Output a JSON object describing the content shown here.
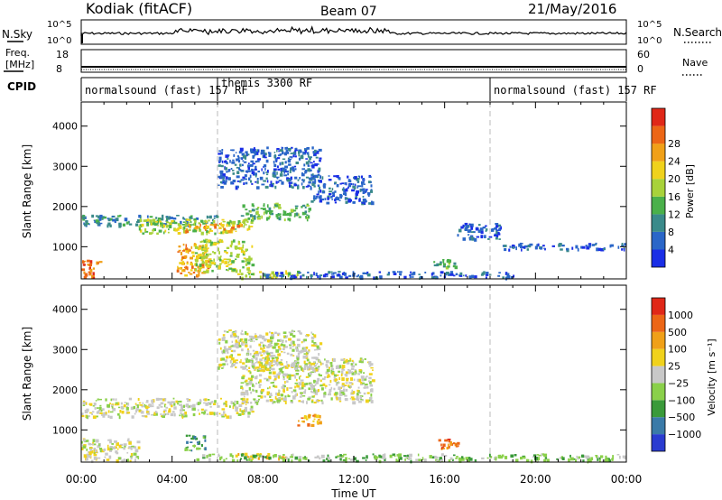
{
  "header": {
    "station": "Kodiak (fitACF)",
    "beam": "Beam 07",
    "date": "21/May/2016"
  },
  "top_panels": {
    "nsky": {
      "label": "N.Sky",
      "ticks": [
        "10^5",
        "10^0"
      ]
    },
    "nsearch": {
      "label": "N.Search",
      "ticks": [
        "10^5",
        "10^0"
      ]
    },
    "freq": {
      "label_line1": "Freq.",
      "label_line2": "[MHz]",
      "ticks": [
        "18",
        "8"
      ]
    },
    "nave": {
      "label": "Nave",
      "ticks": [
        "60",
        "0"
      ]
    },
    "cpid": {
      "label": "CPID",
      "segments": [
        {
          "start_hour": 0,
          "end_hour": 6,
          "text": "normalsound (fast) 157 RF"
        },
        {
          "start_hour": 6,
          "end_hour": 18,
          "text": "themis 3300 RF"
        },
        {
          "start_hour": 18,
          "end_hour": 24,
          "text": "normalsound (fast) 157 RF"
        }
      ]
    }
  },
  "chart_data": [
    {
      "type": "heatmap",
      "name": "power",
      "ylabel": "Slant Range [km]",
      "xlabel": "",
      "xlim": [
        0,
        24
      ],
      "ylim": [
        200,
        4600
      ],
      "x_ticks": [
        "00:00",
        "04:00",
        "08:00",
        "12:00",
        "16:00",
        "20:00",
        "00:00"
      ],
      "y_ticks": [
        1000,
        2000,
        3000,
        4000
      ],
      "colorbar": {
        "label": "Power [dB]",
        "ticks": [
          "4",
          "8",
          "12",
          "16",
          "20",
          "24",
          "28"
        ],
        "colors": [
          "#1a2ee6",
          "#2a66c8",
          "#3a8a8a",
          "#4ab04a",
          "#a8d23a",
          "#f0d21c",
          "#f0a018",
          "#ec6616",
          "#e02818"
        ]
      },
      "echo_regions": [
        {
          "start_hour": 0.0,
          "end_hour": 6.0,
          "range_start": 1550,
          "range_end": 1800,
          "level": 2
        },
        {
          "start_hour": 2.5,
          "end_hour": 7.5,
          "range_start": 1350,
          "range_end": 1700,
          "level": 4
        },
        {
          "start_hour": 4.5,
          "end_hour": 7.0,
          "range_start": 1400,
          "range_end": 1600,
          "level": 6
        },
        {
          "start_hour": 7.0,
          "end_hour": 10.0,
          "range_start": 1700,
          "range_end": 2100,
          "level": 3
        },
        {
          "start_hour": 10.0,
          "end_hour": 12.8,
          "range_start": 2100,
          "range_end": 2800,
          "level": 1
        },
        {
          "start_hour": 6.0,
          "end_hour": 10.5,
          "range_start": 2500,
          "range_end": 3500,
          "level": 1
        },
        {
          "start_hour": 0.0,
          "end_hour": 0.8,
          "range_start": 250,
          "range_end": 700,
          "level": 7
        },
        {
          "start_hour": 4.2,
          "end_hour": 5.6,
          "range_start": 300,
          "range_end": 1100,
          "level": 6
        },
        {
          "start_hour": 5.0,
          "end_hour": 7.5,
          "range_start": 400,
          "range_end": 1200,
          "level": 4
        },
        {
          "start_hour": 6.8,
          "end_hour": 9.5,
          "range_start": 250,
          "range_end": 420,
          "level": 4
        },
        {
          "start_hour": 15.5,
          "end_hour": 16.5,
          "range_start": 500,
          "range_end": 700,
          "level": 3
        },
        {
          "start_hour": 16.5,
          "end_hour": 18.5,
          "range_start": 1200,
          "range_end": 1600,
          "level": 1
        },
        {
          "start_hour": 18.5,
          "end_hour": 24.0,
          "range_start": 950,
          "range_end": 1100,
          "level": 1
        },
        {
          "start_hour": 8.0,
          "end_hour": 19.0,
          "range_start": 250,
          "range_end": 400,
          "level": 1
        }
      ]
    },
    {
      "type": "heatmap",
      "name": "velocity",
      "ylabel": "Slant Range [km]",
      "xlabel": "Time UT",
      "xlim": [
        0,
        24
      ],
      "ylim": [
        200,
        4600
      ],
      "x_ticks": [
        "00:00",
        "04:00",
        "08:00",
        "12:00",
        "16:00",
        "20:00",
        "00:00"
      ],
      "y_ticks": [
        1000,
        2000,
        3000,
        4000
      ],
      "colorbar": {
        "label": "Velocity [m s⁻¹]",
        "ticks": [
          "1000",
          "500",
          "100",
          "25",
          "−25",
          "−100",
          "−500",
          "−1000"
        ],
        "colors": [
          "#2a3cd0",
          "#3a7aa8",
          "#3a9a3a",
          "#8ad04a",
          "#c8c8c8",
          "#f0d21c",
          "#f0a018",
          "#ec6616",
          "#e02818"
        ]
      },
      "echo_regions": [
        {
          "start_hour": 0.0,
          "end_hour": 7.5,
          "range_start": 1350,
          "range_end": 1800,
          "level": 4
        },
        {
          "start_hour": 7.0,
          "end_hour": 12.8,
          "range_start": 1700,
          "range_end": 2800,
          "level": 4
        },
        {
          "start_hour": 6.0,
          "end_hour": 10.5,
          "range_start": 2500,
          "range_end": 3500,
          "level": 4
        },
        {
          "start_hour": 0.0,
          "end_hour": 2.5,
          "range_start": 250,
          "range_end": 800,
          "level": 4
        },
        {
          "start_hour": 4.5,
          "end_hour": 5.5,
          "range_start": 500,
          "range_end": 900,
          "level": 2
        },
        {
          "start_hour": 6.5,
          "end_hour": 9.0,
          "range_start": 300,
          "range_end": 450,
          "level": 5
        },
        {
          "start_hour": 9.5,
          "end_hour": 10.5,
          "range_start": 1100,
          "range_end": 1400,
          "level": 6
        },
        {
          "start_hour": 15.7,
          "end_hour": 16.8,
          "range_start": 550,
          "range_end": 800,
          "level": 7
        },
        {
          "start_hour": 5.0,
          "end_hour": 24.0,
          "range_start": 250,
          "range_end": 420,
          "level": 3
        }
      ]
    }
  ]
}
